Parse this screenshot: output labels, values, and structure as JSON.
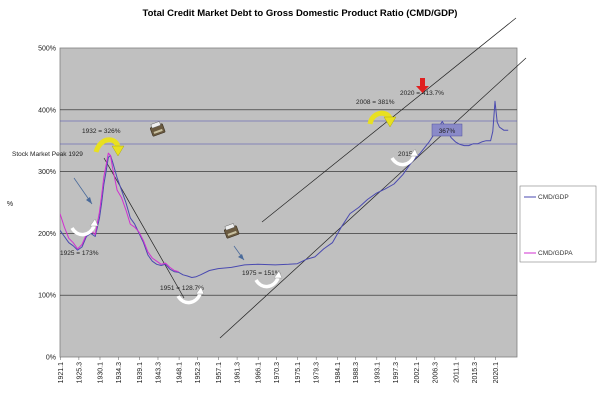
{
  "chart_data": {
    "type": "line",
    "title": "Total Credit Market Debt to Gross Domestic Product Ratio (CMD/GDP)",
    "xlabel": "",
    "ylabel": "%",
    "ylim": [
      0,
      500
    ],
    "yticks": [
      "0%",
      "100%",
      "200%",
      "300%",
      "400%",
      "500%"
    ],
    "xlim": [
      1921,
      2025
    ],
    "xticks": [
      "1921.1",
      "1925.3",
      "1930.1",
      "1934.3",
      "1939.1",
      "1943.3",
      "1948.1",
      "1952.3",
      "1957.1",
      "1961.3",
      "1966.1",
      "1970.3",
      "1975.1",
      "1979.3",
      "1984.1",
      "1988.3",
      "1993.1",
      "1997.3",
      "2002.1",
      "2006.3",
      "2011.1",
      "2015.3",
      "2020.1"
    ],
    "grid": true,
    "legend_position": "right",
    "series": [
      {
        "name": "CMD/GDP",
        "color": "#4a4ab0",
        "x": [
          1921,
          1922,
          1923,
          1924,
          1925,
          1926,
          1927,
          1928,
          1929,
          1930,
          1930.5,
          1931,
          1931.5,
          1932,
          1932.5,
          1933,
          1934,
          1935,
          1936,
          1937,
          1938,
          1939,
          1940,
          1941,
          1942,
          1943,
          1944,
          1945,
          1946,
          1947,
          1948,
          1949,
          1950,
          1951,
          1952,
          1953,
          1955,
          1957,
          1960,
          1963,
          1966,
          1970,
          1973,
          1975,
          1977,
          1979,
          1981,
          1983,
          1985,
          1987,
          1989,
          1991,
          1993,
          1995,
          1997,
          1999,
          2001,
          2003,
          2005,
          2007,
          2008,
          2009,
          2010,
          2011,
          2012,
          2013,
          2014,
          2015,
          2016,
          2017,
          2018,
          2019,
          2019.5,
          2020,
          2020.5,
          2021,
          2022,
          2023
        ],
        "values": [
          205,
          195,
          185,
          180,
          173,
          178,
          195,
          200,
          195,
          225,
          250,
          280,
          300,
          323,
          326,
          315,
          290,
          270,
          250,
          225,
          215,
          200,
          185,
          165,
          155,
          150,
          148,
          150,
          142,
          138,
          137,
          133,
          131,
          128.7,
          130,
          133,
          140,
          143,
          145,
          149,
          150,
          149,
          150,
          151,
          158,
          162,
          175,
          185,
          210,
          232,
          242,
          255,
          265,
          272,
          280,
          295,
          315,
          330,
          348,
          370,
          381,
          368,
          355,
          348,
          344,
          342,
          342,
          345,
          345,
          348,
          350,
          350,
          365,
          413.7,
          380,
          372,
          367,
          367
        ]
      },
      {
        "name": "CMD/GDPA",
        "color": "#d030d0",
        "x": [
          1921,
          1922,
          1923,
          1924,
          1925,
          1926,
          1927,
          1928,
          1929,
          1930,
          1930.5,
          1931,
          1931.5,
          1932,
          1932.5,
          1933,
          1934,
          1935,
          1936,
          1937,
          1938,
          1939,
          1940,
          1941,
          1942,
          1943,
          1944,
          1945,
          1946,
          1947,
          1948
        ],
        "values": [
          232,
          210,
          192,
          185,
          175,
          182,
          198,
          205,
          198,
          235,
          262,
          292,
          310,
          330,
          326,
          305,
          270,
          258,
          238,
          215,
          210,
          202,
          188,
          170,
          160,
          155,
          150,
          152,
          145,
          140,
          138
        ]
      }
    ],
    "annotations": [
      {
        "text": "1932 = 326%",
        "x": 1932,
        "y": 326
      },
      {
        "text": "1925 = 173%",
        "x": 1925,
        "y": 173
      },
      {
        "text": "1951 = 128.7%",
        "x": 1951,
        "y": 128.7
      },
      {
        "text": "1975 = 151%",
        "x": 1975,
        "y": 151
      },
      {
        "text": "2008 = 381%",
        "x": 2008,
        "y": 381
      },
      {
        "text": "2020 = 413.7%",
        "x": 2020,
        "y": 413.7
      },
      {
        "text": "2015",
        "x": 2015,
        "y": 342
      },
      {
        "text": "367%",
        "x": 2023,
        "y": 367
      }
    ],
    "stock_market_label": "Stock Market Peak 1929",
    "stock_market_color": "#e02020",
    "plot_background": "#c0c0c0",
    "highlight_box_color": "#8a8ac8",
    "arrow_color": "#e02020"
  }
}
